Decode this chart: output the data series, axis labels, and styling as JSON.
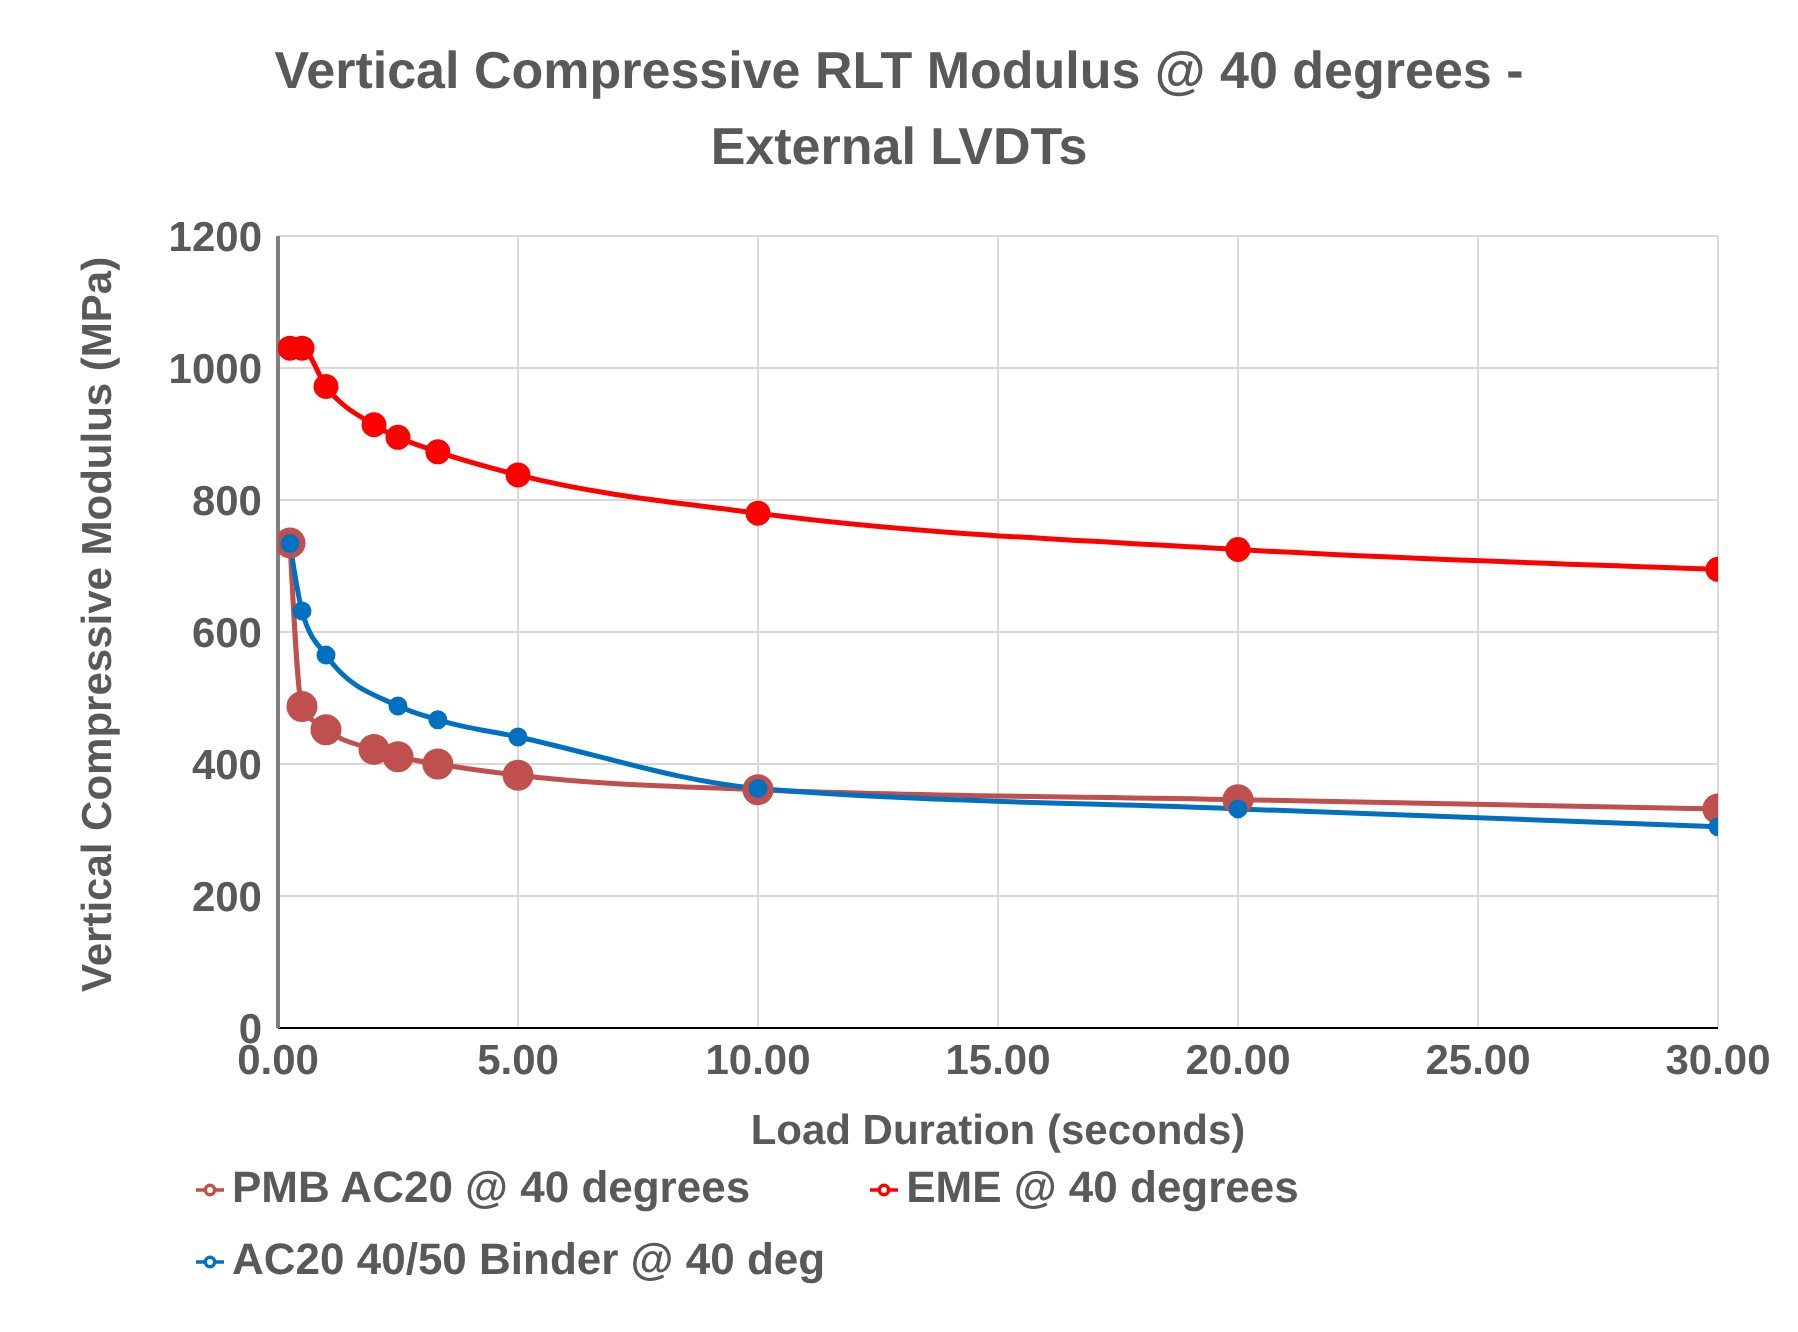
{
  "chart_data": {
    "type": "line",
    "title": "Vertical Compressive RLT Modulus @ 40 degrees - External LVDTs",
    "xlabel": "Load Duration (seconds)",
    "ylabel": "Vertical Compressive Modulus (MPa)",
    "series": [
      {
        "name": "PMB AC20 @ 40 degrees",
        "color": "#c0504d",
        "x": [
          0.25,
          0.5,
          1,
          2,
          2.5,
          3.33,
          5,
          10,
          20,
          30
        ],
        "values": [
          735,
          487,
          452,
          422,
          411,
          400,
          383,
          361,
          346,
          332
        ]
      },
      {
        "name": "EME @ 40 degrees",
        "color": "#ff0000",
        "x": [
          0.25,
          0.5,
          1,
          2,
          2.5,
          3.33,
          5,
          10,
          20,
          30
        ],
        "values": [
          1030,
          1030,
          972,
          914,
          895,
          873,
          838,
          780,
          725,
          695
        ]
      },
      {
        "name": "AC20 40/50 Binder @ 40 deg",
        "color": "#0070c0",
        "x": [
          0.25,
          0.5,
          1,
          2.5,
          3.33,
          5,
          10,
          20,
          30
        ],
        "values": [
          734,
          632,
          565,
          488,
          467,
          441,
          363,
          332,
          305
        ]
      }
    ],
    "xlim": [
      0,
      30
    ],
    "xticks": [
      {
        "value": 0,
        "label": "0.00"
      },
      {
        "value": 5,
        "label": "5.00"
      },
      {
        "value": 10,
        "label": "10.00"
      },
      {
        "value": 15,
        "label": "15.00"
      },
      {
        "value": 20,
        "label": "20.00"
      },
      {
        "value": 25,
        "label": "25.00"
      },
      {
        "value": 30,
        "label": "30.00"
      }
    ],
    "ylim": [
      0,
      1200
    ],
    "yticks": [
      0,
      200,
      400,
      600,
      800,
      1000,
      1200
    ],
    "grid": true,
    "legend": "bottom left",
    "marker": "circle",
    "line_style": "solid"
  }
}
